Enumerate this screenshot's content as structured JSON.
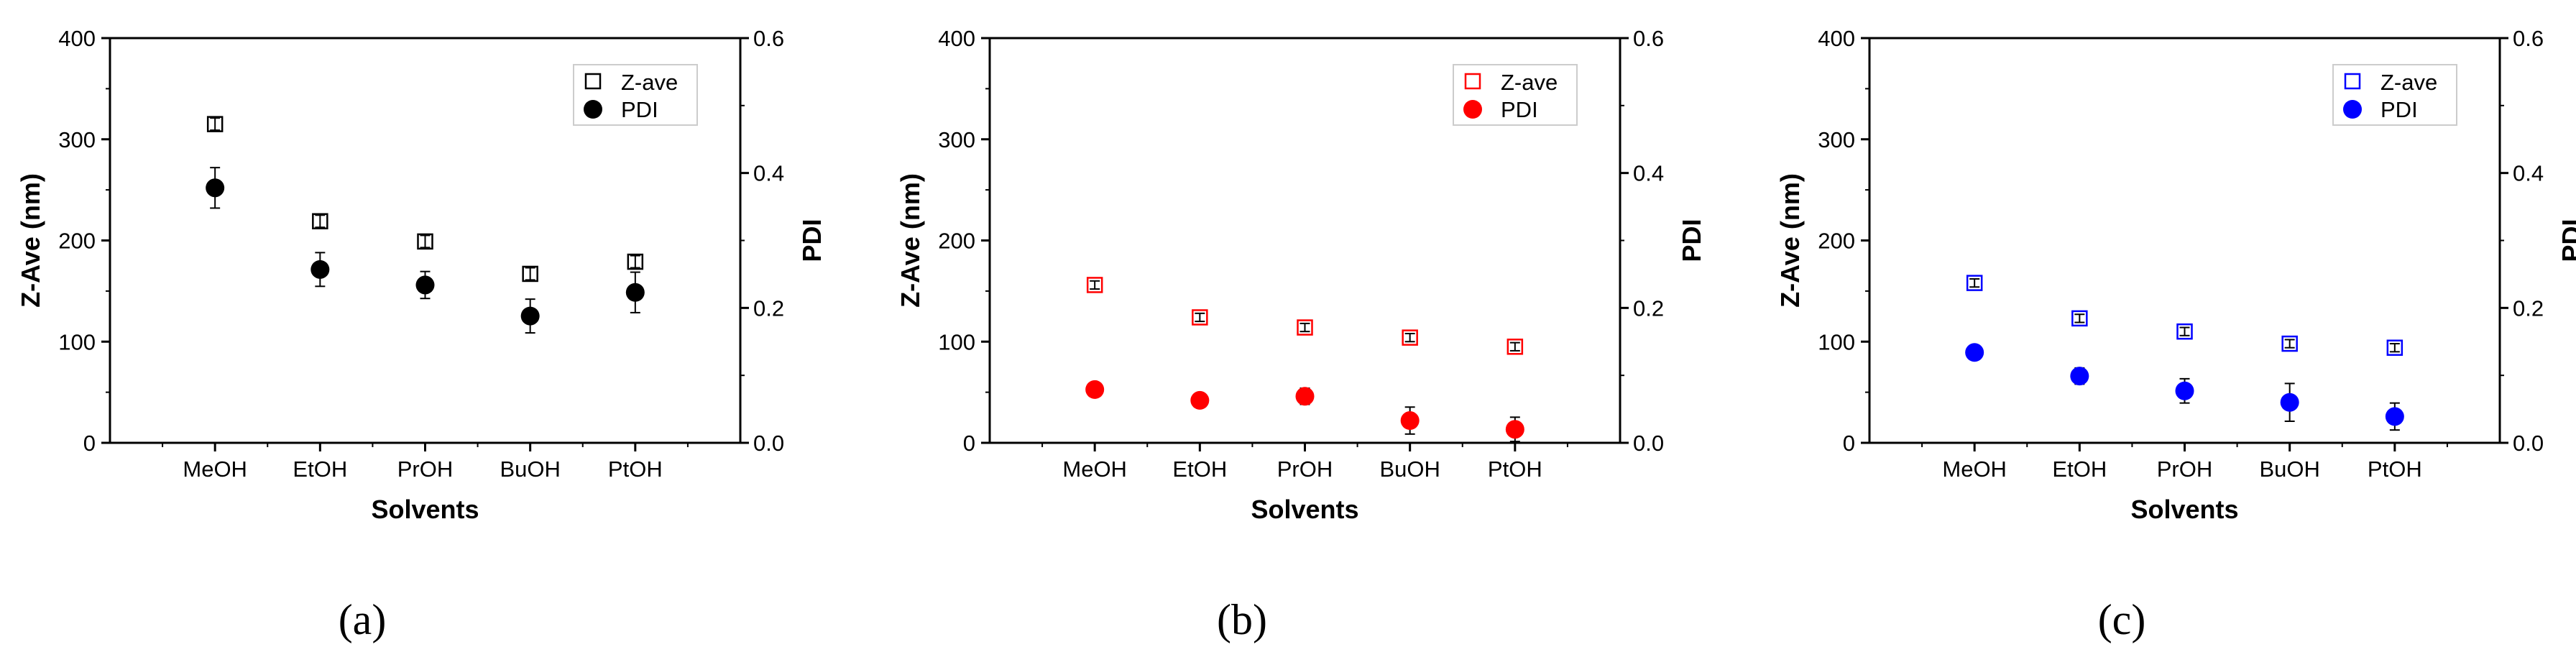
{
  "chart_data": [
    {
      "type": "scatter",
      "panel_label": "(a)",
      "panel_letter": "a",
      "color": "#000000",
      "categories": [
        "MeOH",
        "EtOH",
        "PrOH",
        "BuOH",
        "PtOH"
      ],
      "xlabel": "Solvents",
      "ylabel": "Z-Ave (nm)",
      "y2label": "PDI",
      "ylim": [
        0,
        400
      ],
      "y2lim": [
        0,
        0.6
      ],
      "yticks": [
        "0",
        "100",
        "200",
        "300",
        "400"
      ],
      "y2ticks": [
        "0.0",
        "0.2",
        "0.4",
        "0.6"
      ],
      "legend_position": "top-right",
      "series": [
        {
          "name": "Z-ave",
          "axis": "left",
          "marker": "open-square",
          "values": [
            315,
            219,
            199,
            167,
            179
          ],
          "errors": [
            6,
            6,
            6,
            6,
            6
          ]
        },
        {
          "name": "PDI",
          "axis": "right",
          "marker": "filled-circle",
          "values": [
            0.378,
            0.257,
            0.234,
            0.188,
            0.223
          ],
          "errors": [
            0.03,
            0.025,
            0.02,
            0.025,
            0.03
          ]
        }
      ]
    },
    {
      "type": "scatter",
      "panel_label": "(b)",
      "panel_letter": "b",
      "color": "#ff0000",
      "categories": [
        "MeOH",
        "EtOH",
        "PrOH",
        "BuOH",
        "PtOH"
      ],
      "xlabel": "Solvents",
      "ylabel": "Z-Ave (nm)",
      "y2label": "PDI",
      "ylim": [
        0,
        400
      ],
      "y2lim": [
        0,
        0.6
      ],
      "yticks": [
        "0",
        "100",
        "200",
        "300",
        "400"
      ],
      "y2ticks": [
        "0.0",
        "0.2",
        "0.4",
        "0.6"
      ],
      "legend_position": "top-right",
      "series": [
        {
          "name": "Z-ave",
          "axis": "left",
          "marker": "open-square",
          "values": [
            156,
            124,
            114,
            104,
            95
          ],
          "errors": [
            4,
            4,
            4,
            4,
            4
          ]
        },
        {
          "name": "PDI",
          "axis": "right",
          "marker": "filled-circle",
          "values": [
            0.079,
            0.063,
            0.069,
            0.033,
            0.02
          ],
          "errors": [
            0.008,
            0.006,
            0.012,
            0.02,
            0.018
          ]
        }
      ]
    },
    {
      "type": "scatter",
      "panel_label": "(c)",
      "panel_letter": "c",
      "color": "#0000ff",
      "categories": [
        "MeOH",
        "EtOH",
        "PrOH",
        "BuOH",
        "PtOH"
      ],
      "xlabel": "Solvents",
      "ylabel": "Z-Ave (nm)",
      "y2label": "PDI",
      "ylim": [
        0,
        400
      ],
      "y2lim": [
        0,
        0.6
      ],
      "yticks": [
        "0",
        "100",
        "200",
        "300",
        "400"
      ],
      "y2ticks": [
        "0.0",
        "0.2",
        "0.4",
        "0.6"
      ],
      "legend_position": "top-right",
      "series": [
        {
          "name": "Z-ave",
          "axis": "left",
          "marker": "open-square",
          "values": [
            158,
            123,
            110,
            98,
            94
          ],
          "errors": [
            4,
            4,
            4,
            4,
            4
          ]
        },
        {
          "name": "PDI",
          "axis": "right",
          "marker": "filled-circle",
          "values": [
            0.134,
            0.099,
            0.077,
            0.06,
            0.039
          ],
          "errors": [
            0.005,
            0.012,
            0.018,
            0.028,
            0.02
          ]
        }
      ]
    }
  ]
}
